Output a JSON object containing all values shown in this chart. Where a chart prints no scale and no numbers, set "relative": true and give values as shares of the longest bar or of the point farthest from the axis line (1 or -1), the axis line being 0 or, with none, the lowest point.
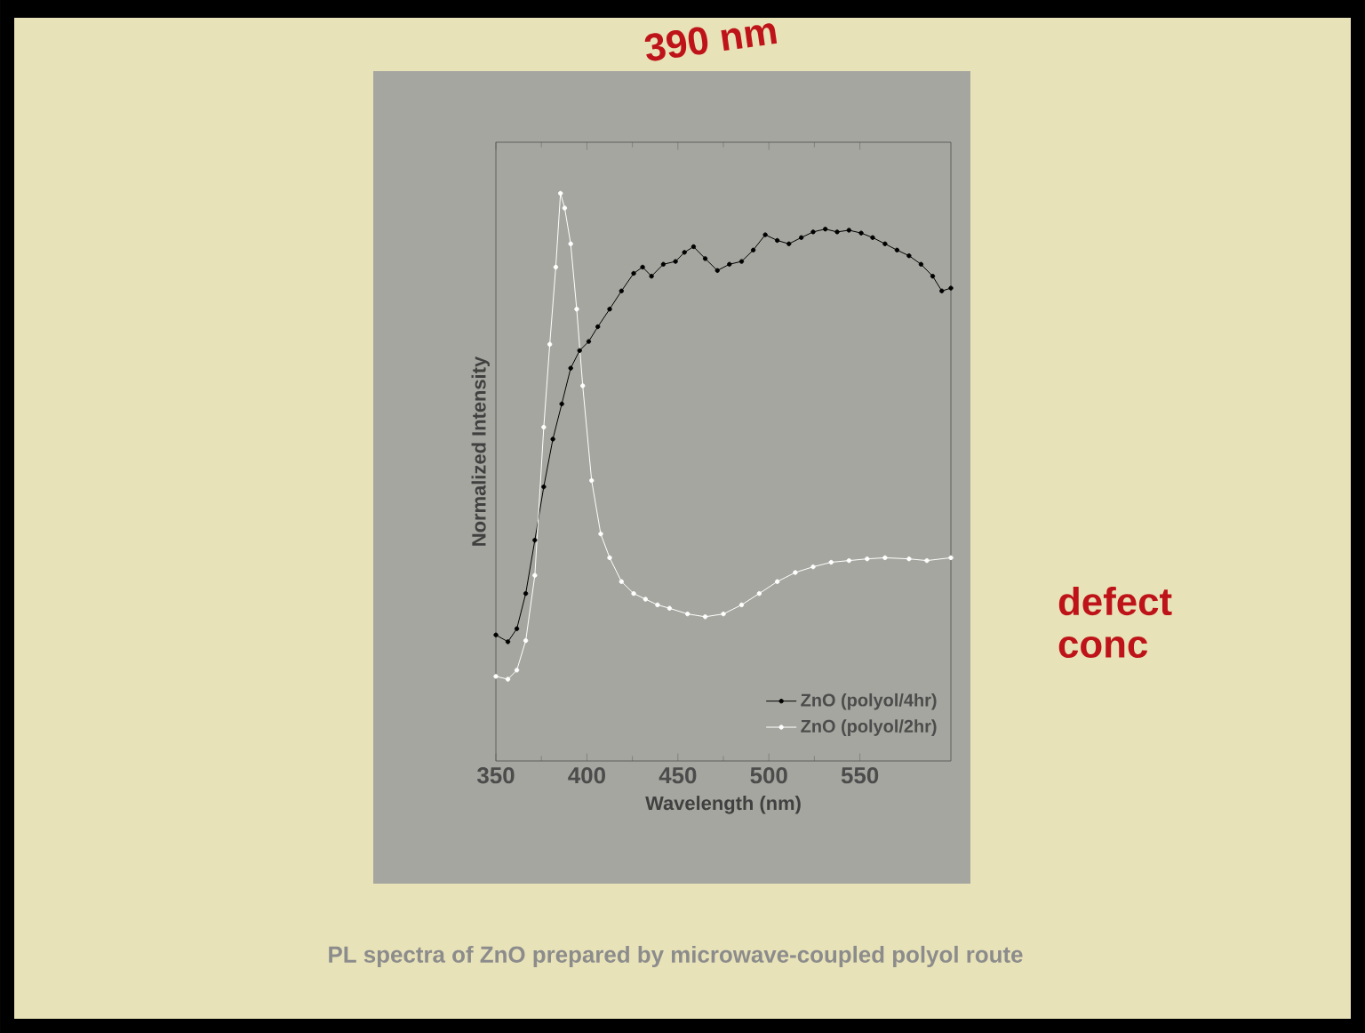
{
  "chart_data": {
    "type": "line",
    "relative": true,
    "xlabel": "Wavelength (nm)",
    "ylabel": "Normalized Intensity",
    "xlim": [
      350,
      600
    ],
    "xticks": [
      350,
      400,
      450,
      500,
      550
    ],
    "marker": "circle",
    "legend": "bottom right",
    "tick_labels": "x",
    "annotations": [
      "390 nm",
      "defect conc",
      "PL spectra of ZnO prepared by microwave-coupled polyol route"
    ],
    "series": [
      {
        "name": "ZnO (polyol/4hr)",
        "color": "#000000",
        "x": [
          350,
          356.6,
          361.5,
          366.4,
          371.4,
          376.3,
          381.3,
          386.2,
          391.1,
          396,
          401,
          406,
          412.5,
          419,
          425.7,
          430.6,
          435.5,
          442,
          448.7,
          453.6,
          458.6,
          465,
          471.7,
          478.3,
          485,
          491.4,
          498,
          504.6,
          511,
          517.8,
          524.3,
          531,
          537.5,
          544,
          550.7,
          557,
          563.8,
          570.4,
          577,
          583.6,
          590,
          595,
          600
        ],
        "values": [
          0.222,
          0.21,
          0.233,
          0.295,
          0.389,
          0.483,
          0.567,
          0.629,
          0.692,
          0.723,
          0.739,
          0.765,
          0.796,
          0.828,
          0.859,
          0.87,
          0.854,
          0.875,
          0.88,
          0.896,
          0.906,
          0.885,
          0.864,
          0.875,
          0.88,
          0.9,
          0.927,
          0.917,
          0.911,
          0.922,
          0.932,
          0.937,
          0.932,
          0.935,
          0.93,
          0.922,
          0.911,
          0.9,
          0.89,
          0.875,
          0.854,
          0.828,
          0.833
        ]
      },
      {
        "name": "ZnO (polyol/2hr)",
        "color": "#ffffff",
        "x": [
          350,
          356.6,
          361.5,
          366.4,
          371.4,
          376.3,
          379.6,
          382.9,
          385.5,
          387.8,
          391.1,
          394.4,
          397.7,
          402.6,
          407.6,
          412.5,
          419,
          425.7,
          432.2,
          438.8,
          445.4,
          455.3,
          465,
          475,
          485,
          494.7,
          504.6,
          514.5,
          524.3,
          534.2,
          544,
          554,
          563.8,
          577,
          586.8,
          600
        ],
        "values": [
          0.149,
          0.144,
          0.16,
          0.212,
          0.327,
          0.588,
          0.734,
          0.87,
          1.0,
          0.974,
          0.911,
          0.796,
          0.661,
          0.494,
          0.4,
          0.358,
          0.316,
          0.295,
          0.285,
          0.275,
          0.269,
          0.259,
          0.254,
          0.259,
          0.275,
          0.295,
          0.316,
          0.332,
          0.342,
          0.35,
          0.353,
          0.356,
          0.358,
          0.356,
          0.353,
          0.358
        ]
      }
    ]
  }
}
